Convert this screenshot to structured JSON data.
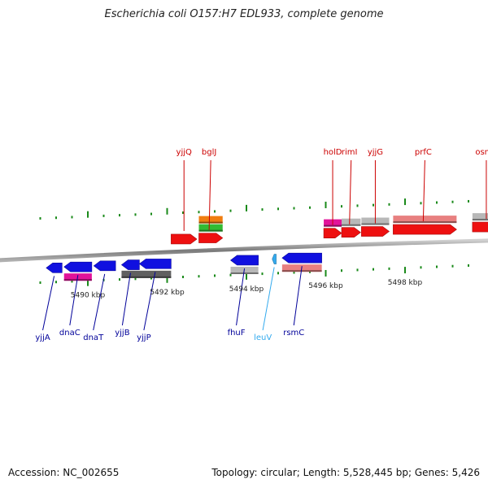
{
  "title": "Escherichia coli O157:H7 EDL933, complete genome",
  "footer": {
    "accession": "Accession: NC_002655",
    "stats": "Topology: circular; Length: 5,528,445 bp; Genes: 5,426"
  },
  "colors": {
    "forward_label": "#cc0000",
    "reverse_label": "#000099",
    "rna_label": "#33aaee",
    "backbone": "#808080",
    "tick": "#1a8a1a"
  },
  "scale": {
    "unit": "kbp",
    "range_kbp": [
      5488.9,
      5499.6
    ]
  },
  "coordinate_labels": [
    {
      "kbp": 5490,
      "label": "5490 kbp"
    },
    {
      "kbp": 5492,
      "label": "5492 kbp"
    },
    {
      "kbp": 5494,
      "label": "5494 kbp"
    },
    {
      "kbp": 5496,
      "label": "5496 kbp"
    },
    {
      "kbp": 5498,
      "label": "5498 kbp"
    }
  ],
  "genes": [
    {
      "name": "yjjA",
      "strand": "reverse",
      "start_kbp": 5488.95,
      "end_kbp": 5489.35,
      "color": "#1010e0",
      "label_color": "#000099"
    },
    {
      "name": "dnaC",
      "strand": "reverse",
      "start_kbp": 5489.4,
      "end_kbp": 5490.1,
      "color": "#1010e0",
      "label_color": "#000099"
    },
    {
      "name": "dnaT",
      "strand": "reverse",
      "start_kbp": 5490.15,
      "end_kbp": 5490.7,
      "color": "#1010e0",
      "label_color": "#000099"
    },
    {
      "name": "yjjB",
      "strand": "reverse",
      "start_kbp": 5490.85,
      "end_kbp": 5491.3,
      "color": "#1010e0",
      "label_color": "#000099"
    },
    {
      "name": "yjjP",
      "strand": "reverse",
      "start_kbp": 5491.3,
      "end_kbp": 5492.1,
      "color": "#1010e0",
      "label_color": "#000099"
    },
    {
      "name": "yjjQ",
      "strand": "forward",
      "start_kbp": 5492.1,
      "end_kbp": 5492.75,
      "color": "#ee1010",
      "label_color": "#cc0000"
    },
    {
      "name": "bglJ",
      "strand": "forward",
      "start_kbp": 5492.8,
      "end_kbp": 5493.4,
      "color": "#ee1010",
      "label_color": "#cc0000"
    },
    {
      "name": "fhuF",
      "strand": "reverse",
      "start_kbp": 5493.6,
      "end_kbp": 5494.3,
      "color": "#1010e0",
      "label_color": "#000099"
    },
    {
      "name": "leuV",
      "strand": "reverse",
      "start_kbp": 5494.65,
      "end_kbp": 5494.75,
      "color": "#33aaee",
      "label_color": "#33aaee"
    },
    {
      "name": "rsmC",
      "strand": "reverse",
      "start_kbp": 5494.9,
      "end_kbp": 5495.9,
      "color": "#1010e0",
      "label_color": "#000099"
    },
    {
      "name": "holD",
      "strand": "forward",
      "start_kbp": 5495.95,
      "end_kbp": 5496.4,
      "color": "#ee1010",
      "label_color": "#cc0000"
    },
    {
      "name": "rimI",
      "strand": "forward",
      "start_kbp": 5496.4,
      "end_kbp": 5496.88,
      "color": "#ee1010",
      "label_color": "#cc0000"
    },
    {
      "name": "yjjG",
      "strand": "forward",
      "start_kbp": 5496.9,
      "end_kbp": 5497.6,
      "color": "#ee1010",
      "label_color": "#cc0000"
    },
    {
      "name": "prfC",
      "strand": "forward",
      "start_kbp": 5497.7,
      "end_kbp": 5499.3,
      "color": "#ee1010",
      "label_color": "#cc0000"
    },
    {
      "name": "osmY",
      "strand": "forward",
      "start_kbp": 5499.7,
      "end_kbp": 5500.4,
      "color": "#ee1010",
      "label_color": "#cc0000"
    }
  ],
  "features": [
    {
      "track": "forward-2",
      "start_kbp": 5492.8,
      "end_kbp": 5493.4,
      "color": "#33bb33"
    },
    {
      "track": "forward-3",
      "start_kbp": 5492.8,
      "end_kbp": 5493.4,
      "color": "#f07d10"
    },
    {
      "track": "forward-2",
      "start_kbp": 5495.95,
      "end_kbp": 5496.4,
      "color": "#e2129a"
    },
    {
      "track": "forward-2",
      "start_kbp": 5496.4,
      "end_kbp": 5496.88,
      "color": "#b8b8b8"
    },
    {
      "track": "forward-2",
      "start_kbp": 5496.9,
      "end_kbp": 5497.6,
      "color": "#b8b8b8"
    },
    {
      "track": "forward-2",
      "start_kbp": 5497.7,
      "end_kbp": 5499.3,
      "color": "#e88080"
    },
    {
      "track": "forward-2",
      "start_kbp": 5499.7,
      "end_kbp": 5500.4,
      "color": "#b8b8b8"
    },
    {
      "track": "reverse-2",
      "start_kbp": 5489.4,
      "end_kbp": 5490.1,
      "color": "#e2129a"
    },
    {
      "track": "reverse-2",
      "start_kbp": 5490.85,
      "end_kbp": 5492.1,
      "color": "#606060"
    },
    {
      "track": "reverse-2",
      "start_kbp": 5493.6,
      "end_kbp": 5494.3,
      "color": "#b8b8b8"
    },
    {
      "track": "reverse-2",
      "start_kbp": 5494.9,
      "end_kbp": 5495.9,
      "color": "#e88080"
    }
  ]
}
